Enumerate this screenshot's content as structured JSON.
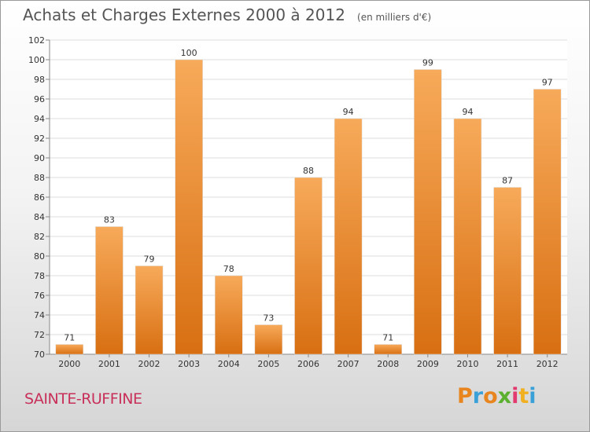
{
  "header": {
    "title": "Achats et Charges Externes 2000 à 2012",
    "unit_note": "(en milliers d'€)"
  },
  "footer": {
    "city": "SAINTE-RUFFINE",
    "logo_letters": [
      "P",
      "r",
      "o",
      "x",
      "i",
      "t",
      "i"
    ],
    "logo_colors": [
      "#e8851f",
      "#3aa0d8",
      "#e8851f",
      "#5cb030",
      "#e23a6e",
      "#f0b020",
      "#3aa0d8"
    ]
  },
  "chart_data": {
    "type": "bar",
    "title": "Achats et Charges Externes 2000 à 2012",
    "subtitle": "(en milliers d'€)",
    "categories": [
      "2000",
      "2001",
      "2002",
      "2003",
      "2004",
      "2005",
      "2006",
      "2007",
      "2008",
      "2009",
      "2010",
      "2011",
      "2012"
    ],
    "values": [
      71,
      83,
      79,
      100,
      78,
      73,
      88,
      94,
      71,
      99,
      94,
      87,
      97
    ],
    "ylim": [
      70,
      102
    ],
    "yticks": [
      70,
      72,
      74,
      76,
      78,
      80,
      82,
      84,
      86,
      88,
      90,
      92,
      94,
      96,
      98,
      100,
      102
    ],
    "grid": true,
    "bar_color": "#f28a2e",
    "bar_color_light": "#f7aa5a",
    "bar_color_dark": "#d86f12"
  }
}
